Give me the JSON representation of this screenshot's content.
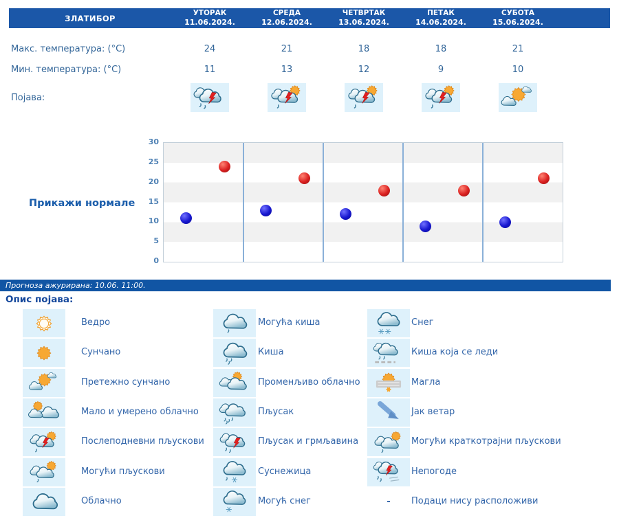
{
  "header": {
    "location": "ЗЛАТИБОР",
    "days": [
      {
        "name": "УТОРАК",
        "date": "11.06.2024."
      },
      {
        "name": "СРЕДА",
        "date": "12.06.2024."
      },
      {
        "name": "ЧЕТВРТАК",
        "date": "13.06.2024."
      },
      {
        "name": "ПЕТАК",
        "date": "14.06.2024."
      },
      {
        "name": "СУБОТА",
        "date": "15.06.2024."
      }
    ]
  },
  "table": {
    "max_label": "Макс. температура: (°C)",
    "min_label": "Мин. температура: (°C)",
    "pojava_label": "Појава:",
    "max_values": [
      24,
      21,
      18,
      18,
      21
    ],
    "min_values": [
      11,
      13,
      12,
      9,
      10
    ],
    "pojava_icons": [
      "storm-icon",
      "sun-storm-icon",
      "sun-storm-icon",
      "sun-storm-icon",
      "mostly-sunny-icon"
    ]
  },
  "chart_data": {
    "type": "scatter",
    "categories": [
      "11.06.",
      "12.06.",
      "13.06.",
      "14.06.",
      "15.06."
    ],
    "series": [
      {
        "name": "Макс. температура",
        "color": "#d42020",
        "values": [
          24,
          21,
          18,
          18,
          21
        ]
      },
      {
        "name": "Мин. температура",
        "color": "#1b1bcd",
        "values": [
          11,
          13,
          12,
          9,
          10
        ]
      }
    ],
    "title": "",
    "xlabel": "",
    "ylabel": "",
    "ylim": [
      0,
      30
    ],
    "ytick_step": 5,
    "grid": "horizontal-bands",
    "legend_position": "none"
  },
  "normals_link": "Прикажи нормале",
  "update_bar": "Прогноза ажурирана:  10.06. 11:00.",
  "legend": {
    "title": "Опис појава:",
    "columns": [
      [
        {
          "label": "Ведро",
          "icon": "clear-icon"
        },
        {
          "label": "Сунчано",
          "icon": "sunny-icon"
        },
        {
          "label": "Претежно сунчано",
          "icon": "mostly-sunny-icon"
        },
        {
          "label": "Мало и умерено облачно",
          "icon": "partly-cloudy-icon"
        },
        {
          "label": "Послеподневни пљускови",
          "icon": "sun-storm-icon"
        },
        {
          "label": "Могући пљускови",
          "icon": "sun-shower-icon"
        },
        {
          "label": "Облачно",
          "icon": "cloudy-icon"
        }
      ],
      [
        {
          "label": "Могућа киша",
          "icon": "rain-possible-icon"
        },
        {
          "label": "Киша",
          "icon": "rain-icon"
        },
        {
          "label": "Променљиво облачно",
          "icon": "variable-cloudy-icon"
        },
        {
          "label": "Пљусак",
          "icon": "shower-icon"
        },
        {
          "label": "Пљусак и грмљавина",
          "icon": "storm-icon"
        },
        {
          "label": "Суснежица",
          "icon": "sleet-icon"
        },
        {
          "label": "Могућ снег",
          "icon": "snow-possible-icon"
        }
      ],
      [
        {
          "label": "Снег",
          "icon": "snow-icon"
        },
        {
          "label": "Киша која се леди",
          "icon": "freezing-rain-icon"
        },
        {
          "label": "Магла",
          "icon": "fog-icon"
        },
        {
          "label": "Јак ветар",
          "icon": "wind-icon"
        },
        {
          "label": "Могући краткотрајни пљускови",
          "icon": "sun-shower-icon"
        },
        {
          "label": "Непогоде",
          "icon": "severe-icon"
        },
        {
          "label": "Подаци нису расположиви",
          "icon": "none-icon"
        }
      ]
    ]
  },
  "colors": {
    "header_bg": "#1b57a8",
    "update_bar_bg": "#1155a4",
    "icon_cell_bg": "#def1fb",
    "label_text": "#336699",
    "legend_text": "#3366aa",
    "chart_band": "#f1f1f1",
    "chart_separator": "#8ab0d8",
    "dot_max": "#d42020",
    "dot_min": "#1b1bcd"
  }
}
